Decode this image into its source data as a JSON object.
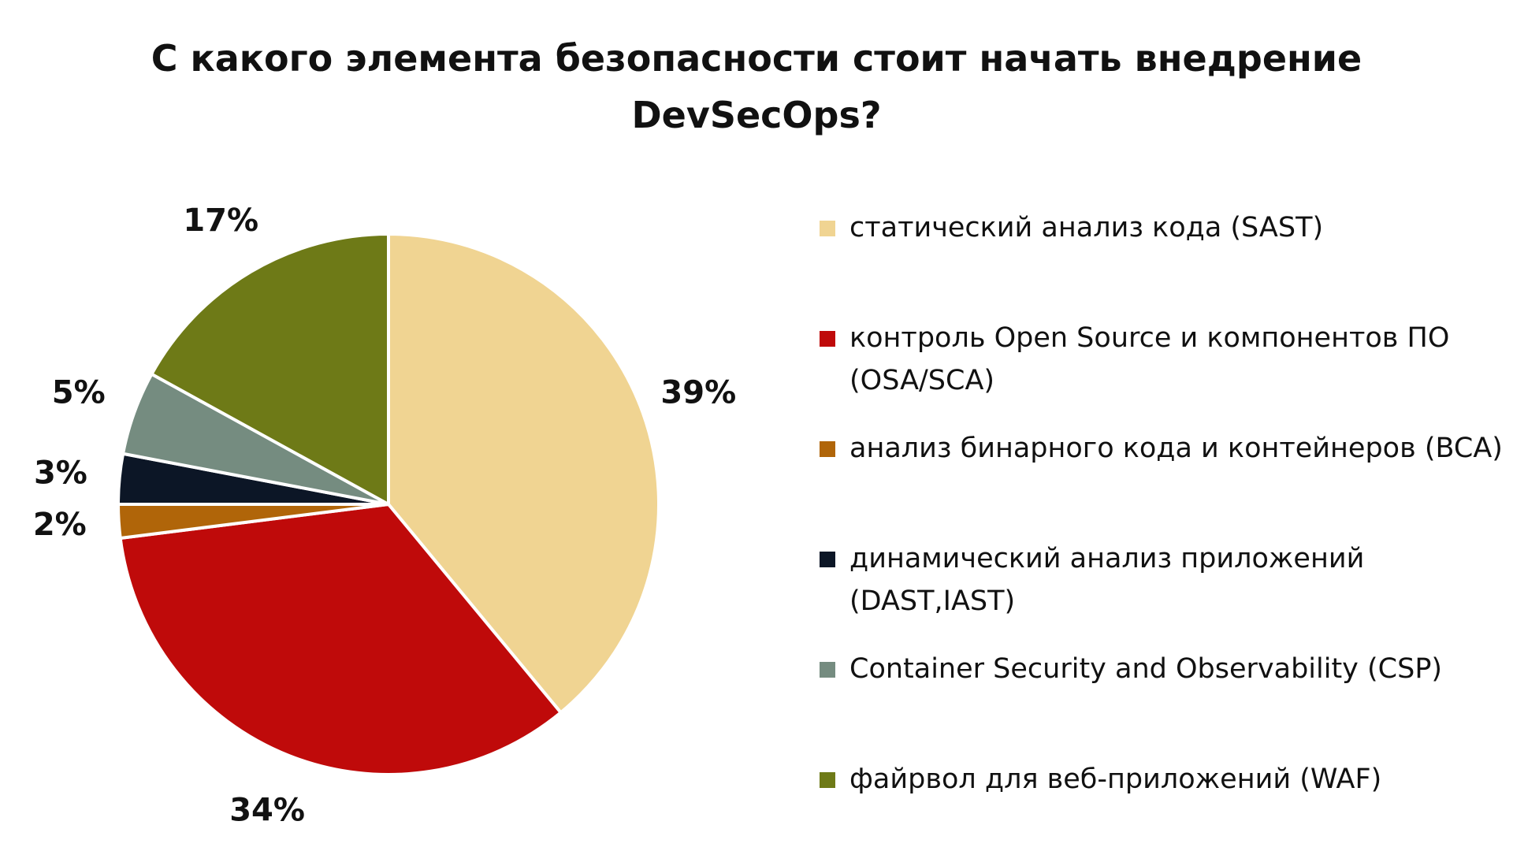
{
  "chart_data": {
    "type": "pie",
    "title_lines": [
      "С какого элемента безопасности стоит начать внедрение",
      "DevSecOps?"
    ],
    "slices": [
      {
        "name": "статический анализ кода (SAST)",
        "value": 39,
        "label": "39%",
        "color": "#F0D492"
      },
      {
        "name": "контроль Open Source и компонентов ПО (OSA/SCA)",
        "value": 34,
        "label": "34%",
        "color": "#BF0A0A"
      },
      {
        "name": "анализ бинарного кода и контейнеров (BCA)",
        "value": 2,
        "label": "2%",
        "color": "#B06509"
      },
      {
        "name": "динамический анализ приложений (DAST,IAST)",
        "value": 3,
        "label": "3%",
        "color": "#0C1626"
      },
      {
        "name": "Container Security and Observability (CSP)",
        "value": 5,
        "label": "5%",
        "color": "#758C80"
      },
      {
        "name": "файрвол для веб-приложений (WAF)",
        "value": 17,
        "label": "17%",
        "color": "#6E7A17"
      }
    ],
    "legend_position": "right"
  }
}
